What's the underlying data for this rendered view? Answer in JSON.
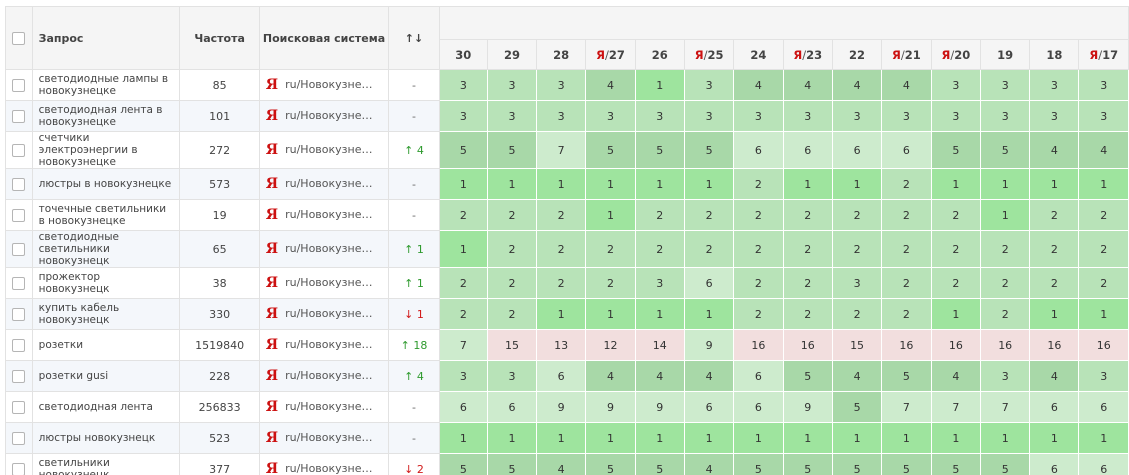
{
  "header": {
    "query": "Запрос",
    "frequency": "Частота",
    "search_engine": "Поисковая система",
    "change": "↑↓"
  },
  "dates": [
    {
      "label": "30",
      "yandex": false
    },
    {
      "label": "29",
      "yandex": false
    },
    {
      "label": "28",
      "yandex": false
    },
    {
      "label": "27",
      "yandex": true
    },
    {
      "label": "26",
      "yandex": false
    },
    {
      "label": "25",
      "yandex": true
    },
    {
      "label": "24",
      "yandex": false
    },
    {
      "label": "23",
      "yandex": true
    },
    {
      "label": "22",
      "yandex": false
    },
    {
      "label": "21",
      "yandex": true
    },
    {
      "label": "20",
      "yandex": true
    },
    {
      "label": "19",
      "yandex": false
    },
    {
      "label": "18",
      "yandex": false
    },
    {
      "label": "17",
      "yandex": true
    }
  ],
  "yandex_letter": "Я",
  "yandex_sep": "/",
  "rows": [
    {
      "query": "светодиодные лампы в новокузнецке",
      "freq": "85",
      "se": "ru/Новокузне…",
      "change": "-",
      "dir": "none",
      "positions": [
        3,
        3,
        3,
        4,
        1,
        3,
        4,
        4,
        4,
        4,
        3,
        3,
        3,
        3
      ]
    },
    {
      "query": "светодиодная лента в новокузнецке",
      "freq": "101",
      "se": "ru/Новокузне…",
      "change": "-",
      "dir": "none",
      "positions": [
        3,
        3,
        3,
        3,
        3,
        3,
        3,
        3,
        3,
        3,
        3,
        3,
        3,
        3
      ]
    },
    {
      "query": "счетчики электроэнергии в новокузнецке",
      "freq": "272",
      "se": "ru/Новокузне…",
      "change": "↑ 4",
      "dir": "up",
      "positions": [
        5,
        5,
        7,
        5,
        5,
        5,
        6,
        6,
        6,
        6,
        5,
        5,
        4,
        4
      ]
    },
    {
      "query": "люстры в новокузнецке",
      "freq": "573",
      "se": "ru/Новокузне…",
      "change": "-",
      "dir": "none",
      "positions": [
        1,
        1,
        1,
        1,
        1,
        1,
        2,
        1,
        1,
        2,
        1,
        1,
        1,
        1
      ]
    },
    {
      "query": "точечные светильники в новокузнецке",
      "freq": "19",
      "se": "ru/Новокузне…",
      "change": "-",
      "dir": "none",
      "positions": [
        2,
        2,
        2,
        1,
        2,
        2,
        2,
        2,
        2,
        2,
        2,
        1,
        2,
        2
      ]
    },
    {
      "query": "светодиодные светильники новокузнецк",
      "freq": "65",
      "se": "ru/Новокузне…",
      "change": "↑ 1",
      "dir": "up",
      "positions": [
        1,
        2,
        2,
        2,
        2,
        2,
        2,
        2,
        2,
        2,
        2,
        2,
        2,
        2
      ]
    },
    {
      "query": "прожектор новокузнецк",
      "freq": "38",
      "se": "ru/Новокузне…",
      "change": "↑ 1",
      "dir": "up",
      "positions": [
        2,
        2,
        2,
        2,
        3,
        6,
        2,
        2,
        3,
        2,
        2,
        2,
        2,
        2
      ]
    },
    {
      "query": "купить кабель новокузнецк",
      "freq": "330",
      "se": "ru/Новокузне…",
      "change": "↓ 1",
      "dir": "down",
      "positions": [
        2,
        2,
        1,
        1,
        1,
        1,
        2,
        2,
        2,
        2,
        1,
        2,
        1,
        1
      ]
    },
    {
      "query": "розетки",
      "freq": "1519840",
      "se": "ru/Новокузне…",
      "change": "↑ 18",
      "dir": "up",
      "positions": [
        7,
        15,
        13,
        12,
        14,
        9,
        16,
        16,
        15,
        16,
        16,
        16,
        16,
        16
      ]
    },
    {
      "query": "розетки gusi",
      "freq": "228",
      "se": "ru/Новокузне…",
      "change": "↑ 4",
      "dir": "up",
      "positions": [
        3,
        3,
        6,
        4,
        4,
        4,
        6,
        5,
        4,
        5,
        4,
        3,
        4,
        3
      ]
    },
    {
      "query": "светодиодная лента",
      "freq": "256833",
      "se": "ru/Новокузне…",
      "change": "-",
      "dir": "none",
      "positions": [
        6,
        6,
        9,
        9,
        9,
        6,
        6,
        9,
        5,
        7,
        7,
        7,
        6,
        6
      ]
    },
    {
      "query": "люстры новокузнецк",
      "freq": "523",
      "se": "ru/Новокузне…",
      "change": "-",
      "dir": "none",
      "positions": [
        1,
        1,
        1,
        1,
        1,
        1,
        1,
        1,
        1,
        1,
        1,
        1,
        1,
        1
      ]
    },
    {
      "query": "светильники новокузнецк",
      "freq": "377",
      "se": "ru/Новокузне…",
      "change": "↓ 2",
      "dir": "down",
      "positions": [
        5,
        5,
        4,
        5,
        5,
        4,
        5,
        5,
        5,
        5,
        5,
        5,
        6,
        6
      ]
    }
  ],
  "colors": {
    "top": "#9ee49e",
    "top3": "#b8e3b8",
    "top5": "#a8d8a8",
    "top10": "#cdebcd",
    "low": "#f2dede",
    "up": "#2e9a2e",
    "down": "#d11a1a",
    "yandex": "#cc1111"
  }
}
